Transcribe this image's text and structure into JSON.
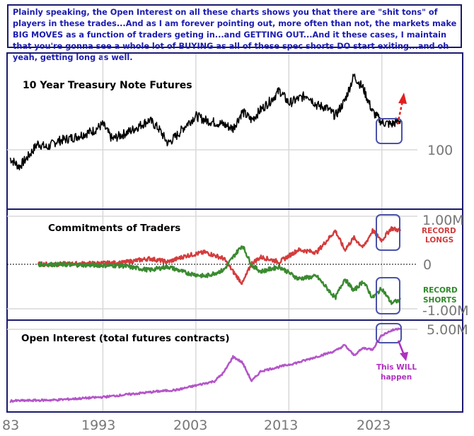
{
  "caption": "Plainly speaking, the Open Interest on all these charts shows you that there are \"shit tons\" of players in these trades...And as I am forever pointing out, more often than not, the markets make BIG MOVES as a function of traders geting in...and GETTING OUT...And it these cases, I maintain that you're gonna see a whole lot of BUYING as all of these spec shorts DO start exiting...and oh yeah, getting long as well.",
  "colors": {
    "caption_text": "#1c1cb0",
    "panel_border": "#1a1a6e",
    "price_line": "#000000",
    "longs": "#d43c3c",
    "shorts": "#3a8a30",
    "open_interest": "#b455c9",
    "highlight_box": "#4a52a8",
    "arrow": "#e02020",
    "arrow_oi": "#b030c0"
  },
  "chart_data": [
    {
      "type": "line",
      "title": "10 Year Treasury Note Futures",
      "y_tick_labels": [
        "100"
      ],
      "x_range": [
        1983,
        2025
      ],
      "series": [
        {
          "x": [
            1983,
            1984,
            1985,
            1986,
            1987,
            1988,
            1990,
            1992,
            1993,
            1994,
            1996,
            1998,
            1999,
            2000,
            2001,
            2002,
            2003,
            2004,
            2006,
            2007,
            2008,
            2009,
            2010,
            2011,
            2012,
            2013,
            2014,
            2015,
            2016,
            2017,
            2018,
            2019,
            2020,
            2021,
            2022,
            2023,
            2024,
            2025
          ],
          "y": [
            96,
            92,
            97,
            103,
            101,
            104,
            106,
            109,
            112,
            105,
            109,
            114,
            110,
            103,
            107,
            112,
            116,
            114,
            112,
            110,
            118,
            114,
            119,
            123,
            128,
            122,
            124,
            126,
            121,
            120,
            116,
            123,
            135,
            129,
            118,
            113,
            112,
            114
          ]
        }
      ],
      "annotations": [
        "highlight box 2023-2025",
        "dashed red arrow pointing up"
      ]
    },
    {
      "type": "line",
      "title": "Commitments of Traders",
      "y_tick_labels": [
        "1.00M",
        "0",
        "-1.00M"
      ],
      "ylim": [
        -1100000,
        1100000
      ],
      "x_range": [
        1983,
        2025
      ],
      "series": [
        {
          "name": "RECORD LONGS",
          "x": [
            1986,
            1990,
            1995,
            1998,
            2000,
            2002,
            2004,
            2006,
            2007,
            2008,
            2009,
            2010,
            2012,
            2014,
            2016,
            2018,
            2019,
            2020,
            2021,
            2022,
            2023,
            2024,
            2025
          ],
          "y": [
            0,
            10000,
            30000,
            120000,
            50000,
            180000,
            250000,
            120000,
            -150000,
            -400000,
            20000,
            150000,
            50000,
            300000,
            250000,
            700000,
            300000,
            550000,
            350000,
            700000,
            500000,
            750000,
            700000
          ]
        },
        {
          "name": "RECORD SHORTS",
          "x": [
            1986,
            1990,
            1995,
            1998,
            2000,
            2002,
            2004,
            2006,
            2007,
            2008,
            2009,
            2010,
            2012,
            2014,
            2016,
            2018,
            2019,
            2020,
            2021,
            2022,
            2023,
            2024,
            2025
          ],
          "y": [
            0,
            -10000,
            -30000,
            -120000,
            -50000,
            -180000,
            -250000,
            -120000,
            150000,
            400000,
            -20000,
            -150000,
            -50000,
            -300000,
            -250000,
            -700000,
            -300000,
            -550000,
            -350000,
            -700000,
            -500000,
            -800000,
            -750000
          ]
        }
      ],
      "annotations": [
        "RECORD LONGS",
        "RECORD SHORTS"
      ]
    },
    {
      "type": "line",
      "title": "Open Interest (total futures contracts)",
      "y_tick_labels": [
        "5.00M"
      ],
      "x_range": [
        1983,
        2025
      ],
      "x_tick_labels": [
        "83",
        "1993",
        "2003",
        "2013",
        "2023"
      ],
      "series": [
        {
          "x": [
            1983,
            1988,
            1993,
            1996,
            1999,
            2001,
            2003,
            2005,
            2006,
            2007,
            2008,
            2009,
            2010,
            2012,
            2014,
            2016,
            2018,
            2019,
            2020,
            2021,
            2022,
            2023,
            2024,
            2025
          ],
          "y": [
            30000,
            100000,
            300000,
            500000,
            700000,
            800000,
            1100000,
            1400000,
            2000000,
            3100000,
            2700000,
            1400000,
            2100000,
            2400000,
            2700000,
            3100000,
            3500000,
            3900000,
            3200000,
            3700000,
            3600000,
            4600000,
            4900000,
            5100000
          ]
        }
      ],
      "annotations": [
        "This WILL happen"
      ]
    }
  ],
  "labels": {
    "record_longs_1": "RECORD",
    "record_longs_2": "LONGS",
    "record_shorts_1": "RECORD",
    "record_shorts_2": "SHORTS",
    "will_1": "This WILL",
    "will_2": "happen"
  }
}
